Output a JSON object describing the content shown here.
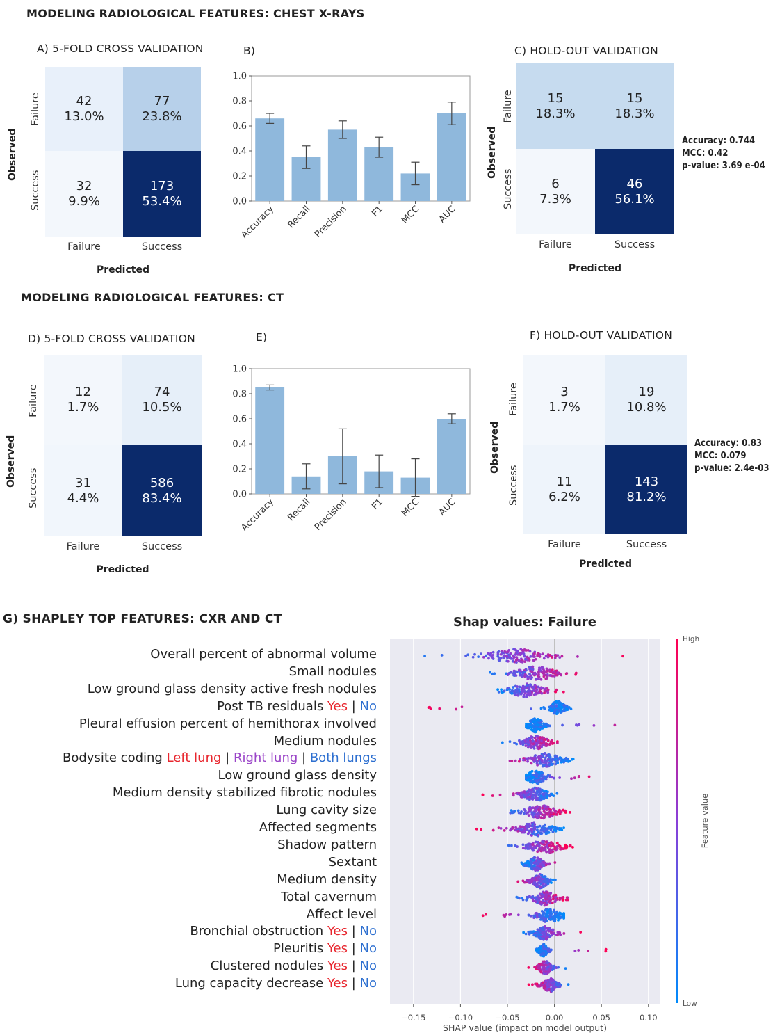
{
  "sections": {
    "cxr_title": "MODELING RADIOLOGICAL FEATURES:  CHEST X-RAYS",
    "ct_title": "MODELING RADIOLOGICAL FEATURES:  CT",
    "shap_title": "G) SHAPLEY  TOP FEATURES:  CXR AND CT"
  },
  "panels": {
    "A": {
      "title": "A) 5-FOLD CROSS  VALIDATION",
      "ylabel": "Observed",
      "xlabel": "Predicted",
      "row_labels": [
        "Failure",
        "Success"
      ],
      "col_labels": [
        "Failure",
        "Success"
      ],
      "cells": [
        [
          "42",
          "13.0%"
        ],
        [
          "77",
          "23.8%"
        ],
        [
          "32",
          "9.9%"
        ],
        [
          "173",
          "53.4%"
        ]
      ],
      "colors": [
        "#e8f0fa",
        "#b7d0ea",
        "#f3f7fc",
        "#0b2a6b"
      ]
    },
    "B": {
      "title": "B)"
    },
    "C": {
      "title": "C) HOLD-OUT  VALIDATION",
      "ylabel": "Observed",
      "xlabel": "Predicted",
      "row_labels": [
        "Failure",
        "Success"
      ],
      "col_labels": [
        "Failure",
        "Success"
      ],
      "cells": [
        [
          "15",
          "18.3%"
        ],
        [
          "15",
          "18.3%"
        ],
        [
          "6",
          "7.3%"
        ],
        [
          "46",
          "56.1%"
        ]
      ],
      "colors": [
        "#c6dbef",
        "#c6dbef",
        "#f3f7fc",
        "#0b2a6b"
      ],
      "metrics": [
        "Accuracy:  0.744",
        "MCC: 0.42",
        "p-value: 3.69 e-04"
      ]
    },
    "D": {
      "title": "D) 5-FOLD CROSS  VALIDATION",
      "ylabel": "Observed",
      "xlabel": "Predicted",
      "row_labels": [
        "Failure",
        "Success"
      ],
      "col_labels": [
        "Failure",
        "Success"
      ],
      "cells": [
        [
          "12",
          "1.7%"
        ],
        [
          "74",
          "10.5%"
        ],
        [
          "31",
          "4.4%"
        ],
        [
          "586",
          "83.4%"
        ]
      ],
      "colors": [
        "#f3f7fc",
        "#e6eff9",
        "#f1f6fc",
        "#0b2a6b"
      ]
    },
    "E": {
      "title": "E)"
    },
    "F": {
      "title": "F) HOLD-OUT  VALIDATION",
      "ylabel": "Observed",
      "xlabel": "Predicted",
      "row_labels": [
        "Failure",
        "Success"
      ],
      "col_labels": [
        "Failure",
        "Success"
      ],
      "cells": [
        [
          "3",
          "1.7%"
        ],
        [
          "19",
          "10.8%"
        ],
        [
          "11",
          "6.2%"
        ],
        [
          "143",
          "81.2%"
        ]
      ],
      "colors": [
        "#f3f7fc",
        "#e6eff9",
        "#eef4fb",
        "#0b2a6b"
      ],
      "metrics": [
        "Accuracy:  0.83",
        "MCC: 0.079",
        "p-value: 2.4e-03"
      ]
    }
  },
  "shap": {
    "title": "Shap values: Failure",
    "features": [
      [
        {
          "t": "Overall percent of abnormal volume",
          "c": ""
        }
      ],
      [
        {
          "t": "Small nodules",
          "c": ""
        }
      ],
      [
        {
          "t": "Low ground glass density active fresh nodules",
          "c": ""
        }
      ],
      [
        {
          "t": "Post TB residuals ",
          "c": ""
        },
        {
          "t": "Yes",
          "c": "red"
        },
        {
          "t": " | ",
          "c": ""
        },
        {
          "t": "No",
          "c": "blue"
        }
      ],
      [
        {
          "t": "Pleural effusion percent of hemithorax involved",
          "c": ""
        }
      ],
      [
        {
          "t": "Medium nodules",
          "c": ""
        }
      ],
      [
        {
          "t": "Bodysite coding ",
          "c": ""
        },
        {
          "t": "Left lung",
          "c": "red"
        },
        {
          "t": " | ",
          "c": ""
        },
        {
          "t": "Right lung",
          "c": "purple"
        },
        {
          "t": " | ",
          "c": ""
        },
        {
          "t": "Both lungs",
          "c": "blue"
        }
      ],
      [
        {
          "t": "Low ground glass density",
          "c": ""
        }
      ],
      [
        {
          "t": "Medium density stabilized fibrotic nodules",
          "c": ""
        }
      ],
      [
        {
          "t": "Lung cavity size",
          "c": ""
        }
      ],
      [
        {
          "t": "Affected segments",
          "c": ""
        }
      ],
      [
        {
          "t": "Shadow pattern",
          "c": ""
        }
      ],
      [
        {
          "t": "Sextant",
          "c": ""
        }
      ],
      [
        {
          "t": "Medium density",
          "c": ""
        }
      ],
      [
        {
          "t": "Total cavernum",
          "c": ""
        }
      ],
      [
        {
          "t": "Affect level",
          "c": ""
        }
      ],
      [
        {
          "t": "Bronchial obstruction ",
          "c": ""
        },
        {
          "t": "Yes",
          "c": "red"
        },
        {
          "t": " | ",
          "c": ""
        },
        {
          "t": "No",
          "c": "blue"
        }
      ],
      [
        {
          "t": "Pleuritis ",
          "c": ""
        },
        {
          "t": "Yes",
          "c": "red"
        },
        {
          "t": " | ",
          "c": ""
        },
        {
          "t": "No",
          "c": "blue"
        }
      ],
      [
        {
          "t": "Clustered nodules ",
          "c": ""
        },
        {
          "t": "Yes",
          "c": "red"
        },
        {
          "t": " | ",
          "c": ""
        },
        {
          "t": "No",
          "c": "blue"
        }
      ],
      [
        {
          "t": "Lung capacity decrease ",
          "c": ""
        },
        {
          "t": "Yes",
          "c": "red"
        },
        {
          "t": " | ",
          "c": ""
        },
        {
          "t": "No",
          "c": "blue"
        }
      ]
    ],
    "colorbar": {
      "high": "High",
      "low": "Low",
      "label": "Feature value"
    }
  },
  "chart_data": [
    {
      "type": "bar",
      "title": "",
      "categories": [
        "Accuracy",
        "Recall",
        "Precision",
        "F1",
        "MCC",
        "AUC"
      ],
      "values": [
        0.66,
        0.35,
        0.57,
        0.43,
        0.22,
        0.7
      ],
      "errors": [
        0.04,
        0.09,
        0.07,
        0.08,
        0.09,
        0.09
      ],
      "ylim": [
        0,
        1.0
      ],
      "yticks": [
        "0.0",
        "0.2",
        "0.4",
        "0.6",
        "0.8",
        "1.0"
      ],
      "color": "#8fb8dc"
    },
    {
      "type": "bar",
      "title": "",
      "categories": [
        "Accuracy",
        "Recall",
        "Precision",
        "F1",
        "MCC",
        "AUC"
      ],
      "values": [
        0.85,
        0.14,
        0.3,
        0.18,
        0.13,
        0.6
      ],
      "errors": [
        0.02,
        0.1,
        0.22,
        0.13,
        0.15,
        0.04
      ],
      "ylim": [
        0,
        1.0
      ],
      "yticks": [
        "0.0",
        "0.2",
        "0.4",
        "0.6",
        "0.8",
        "1.0"
      ],
      "color": "#8fb8dc"
    },
    {
      "type": "scatter",
      "title": "Shap values: Failure",
      "xlabel": "SHAP value (impact on model output)",
      "xlim": [
        -0.175,
        0.112
      ],
      "xticks": [
        -0.15,
        -0.1,
        -0.05,
        0.0,
        0.05,
        0.1
      ],
      "xtick_labels": [
        "−0.15",
        "−0.10",
        "−0.05",
        "0.00",
        "0.05",
        "0.10"
      ],
      "series": [
        {
          "center": -0.04,
          "low": -0.17,
          "high": 0.08,
          "spread": 0.045,
          "hot_side": 1
        },
        {
          "center": -0.02,
          "low": -0.08,
          "high": 0.03,
          "spread": 0.03,
          "hot_side": 1
        },
        {
          "center": -0.03,
          "low": -0.065,
          "high": 0.015,
          "spread": 0.025,
          "hot_side": 1
        },
        {
          "center": 0.003,
          "low": -0.14,
          "high": 0.02,
          "spread": 0.012,
          "hot_side": -1
        },
        {
          "center": -0.02,
          "low": -0.03,
          "high": 0.1,
          "spread": 0.012,
          "hot_side": 1
        },
        {
          "center": -0.02,
          "low": -0.06,
          "high": 0.01,
          "spread": 0.02,
          "hot_side": 1
        },
        {
          "center": -0.01,
          "low": -0.065,
          "high": 0.02,
          "spread": 0.025,
          "hot_side": -1
        },
        {
          "center": -0.02,
          "low": -0.03,
          "high": 0.045,
          "spread": 0.015,
          "hot_side": 1
        },
        {
          "center": -0.02,
          "low": -0.077,
          "high": 0.005,
          "spread": 0.02,
          "hot_side": -1
        },
        {
          "center": -0.015,
          "low": -0.06,
          "high": 0.02,
          "spread": 0.025,
          "hot_side": 1
        },
        {
          "center": -0.02,
          "low": -0.085,
          "high": 0.01,
          "spread": 0.025,
          "hot_side": -1
        },
        {
          "center": -0.01,
          "low": -0.065,
          "high": 0.02,
          "spread": 0.025,
          "hot_side": 1
        },
        {
          "center": -0.02,
          "low": -0.035,
          "high": 0.012,
          "spread": 0.012,
          "hot_side": 1
        },
        {
          "center": -0.015,
          "low": -0.045,
          "high": 0.003,
          "spread": 0.012,
          "hot_side": -1
        },
        {
          "center": -0.01,
          "low": -0.05,
          "high": 0.02,
          "spread": 0.02,
          "hot_side": 1
        },
        {
          "center": -0.005,
          "low": -0.08,
          "high": 0.01,
          "spread": 0.02,
          "hot_side": -1
        },
        {
          "center": -0.01,
          "low": -0.035,
          "high": 0.03,
          "spread": 0.015,
          "hot_side": 1
        },
        {
          "center": -0.012,
          "low": -0.02,
          "high": 0.055,
          "spread": 0.006,
          "hot_side": 1
        },
        {
          "center": -0.01,
          "low": -0.03,
          "high": 0.015,
          "spread": 0.01,
          "hot_side": -1
        },
        {
          "center": -0.005,
          "low": -0.028,
          "high": 0.018,
          "spread": 0.01,
          "hot_side": -1
        }
      ]
    }
  ]
}
